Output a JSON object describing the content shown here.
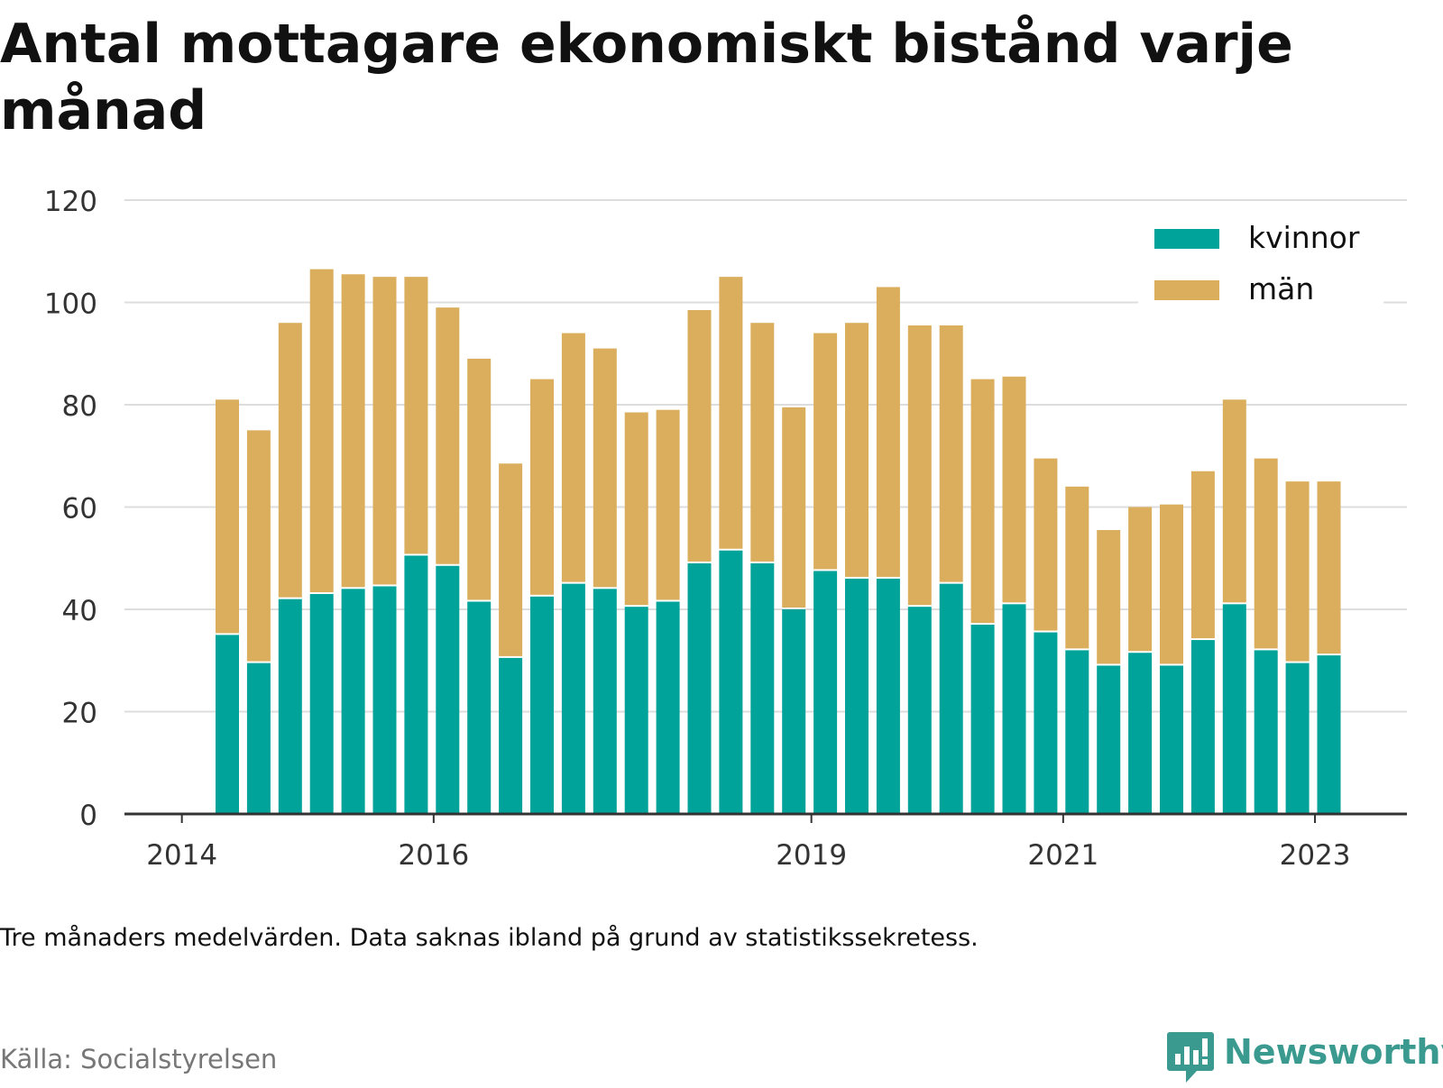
{
  "title": "Antal mottagare ekonomiskt bistånd varje månad",
  "note": "Tre månaders medelvärden. Data saknas ibland på grund av statistikssekretess.",
  "source": "Källa: Socialstyrelsen",
  "brand": "Newsworthy",
  "colors": {
    "kvinnor": "#00a39a",
    "man": "#dbae5d",
    "grid": "#dddddd",
    "axis": "#333333",
    "brand": "#3a9a8f"
  },
  "chart_data": {
    "type": "bar",
    "stacked": true,
    "ylim": [
      0,
      120
    ],
    "yticks": [
      0,
      20,
      40,
      60,
      80,
      100,
      120
    ],
    "xtick_labels": [
      {
        "label": "2014",
        "pos": -1
      },
      {
        "label": "2016",
        "pos": 7
      },
      {
        "label": "2019",
        "pos": 19
      },
      {
        "label": "2021",
        "pos": 27
      },
      {
        "label": "2023",
        "pos": 35
      }
    ],
    "legend": {
      "position": "top-right"
    },
    "series": [
      {
        "name": "kvinnor",
        "color": "#00a39a",
        "values": [
          35,
          29.5,
          42,
          43,
          44,
          44.5,
          50.5,
          48.5,
          41.5,
          30.5,
          42.5,
          45,
          44,
          40.5,
          41.5,
          49,
          51.5,
          49,
          40,
          47.5,
          46,
          46,
          40.5,
          45,
          37,
          41,
          35.5,
          32,
          29,
          31.5,
          29,
          34,
          41,
          32,
          29.5,
          31
        ]
      },
      {
        "name": "män",
        "color": "#dbae5d",
        "values": [
          46,
          45.5,
          54,
          63.5,
          61.5,
          60.5,
          54.5,
          50.5,
          47.5,
          38,
          42.5,
          49,
          47,
          38,
          37.5,
          49.5,
          53.5,
          47,
          39.5,
          46.5,
          50,
          57,
          55,
          50.5,
          48,
          44.5,
          34,
          32,
          26.5,
          28.5,
          31.5,
          33,
          40,
          37.5,
          35.5,
          34
        ]
      }
    ]
  }
}
